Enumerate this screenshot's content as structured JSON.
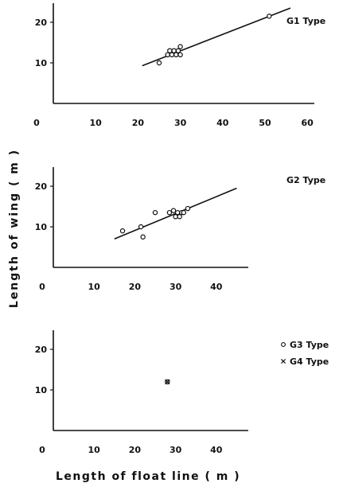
{
  "figure": {
    "xlabel": "Length of float line ( m )",
    "ylabel": "Length of wing ( m )"
  },
  "chart_data": [
    {
      "type": "scatter",
      "panel": "G1",
      "series": [
        {
          "name": "G1 Type",
          "marker": "circle",
          "points": [
            [
              25,
              10
            ],
            [
              27,
              12
            ],
            [
              27.5,
              13
            ],
            [
              28,
              12
            ],
            [
              28.5,
              13
            ],
            [
              29,
              12
            ],
            [
              29.5,
              13
            ],
            [
              30,
              12
            ],
            [
              30,
              14
            ],
            [
              51,
              21.5
            ]
          ]
        }
      ],
      "fit_line": [
        [
          21,
          9.3
        ],
        [
          56,
          23.5
        ]
      ],
      "x_ticks": [
        "0",
        "10",
        "20",
        "30",
        "40",
        "50",
        "60"
      ],
      "y_ticks": [
        "10",
        "20"
      ],
      "xlim": [
        0,
        62
      ],
      "ylim": [
        0,
        25
      ]
    },
    {
      "type": "scatter",
      "panel": "G2",
      "series": [
        {
          "name": "G2 Type",
          "marker": "circle",
          "points": [
            [
              17,
              9
            ],
            [
              21.5,
              10
            ],
            [
              22,
              7.5
            ],
            [
              25,
              13.5
            ],
            [
              28.5,
              13.5
            ],
            [
              29.5,
              14
            ],
            [
              30,
              12.5
            ],
            [
              30.5,
              13.5
            ],
            [
              31,
              12.5
            ],
            [
              31.5,
              13.5
            ],
            [
              32,
              13.5
            ],
            [
              33,
              14.5
            ]
          ]
        }
      ],
      "fit_line": [
        [
          15,
          7
        ],
        [
          45,
          19.5
        ]
      ],
      "x_ticks": [
        "0",
        "10",
        "20",
        "30",
        "40"
      ],
      "y_ticks": [
        "10",
        "20"
      ],
      "xlim": [
        0,
        47
      ],
      "ylim": [
        0,
        25
      ]
    },
    {
      "type": "scatter",
      "panel": "G3/G4",
      "series": [
        {
          "name": "G3 Type",
          "marker": "circle",
          "points": [
            [
              28,
              12
            ]
          ]
        },
        {
          "name": "G4 Type",
          "marker": "cross",
          "points": [
            [
              28,
              12
            ]
          ]
        }
      ],
      "x_ticks": [
        "0",
        "10",
        "20",
        "30",
        "40"
      ],
      "y_ticks": [
        "10",
        "20"
      ],
      "xlim": [
        0,
        47
      ],
      "ylim": [
        0,
        25
      ]
    }
  ]
}
